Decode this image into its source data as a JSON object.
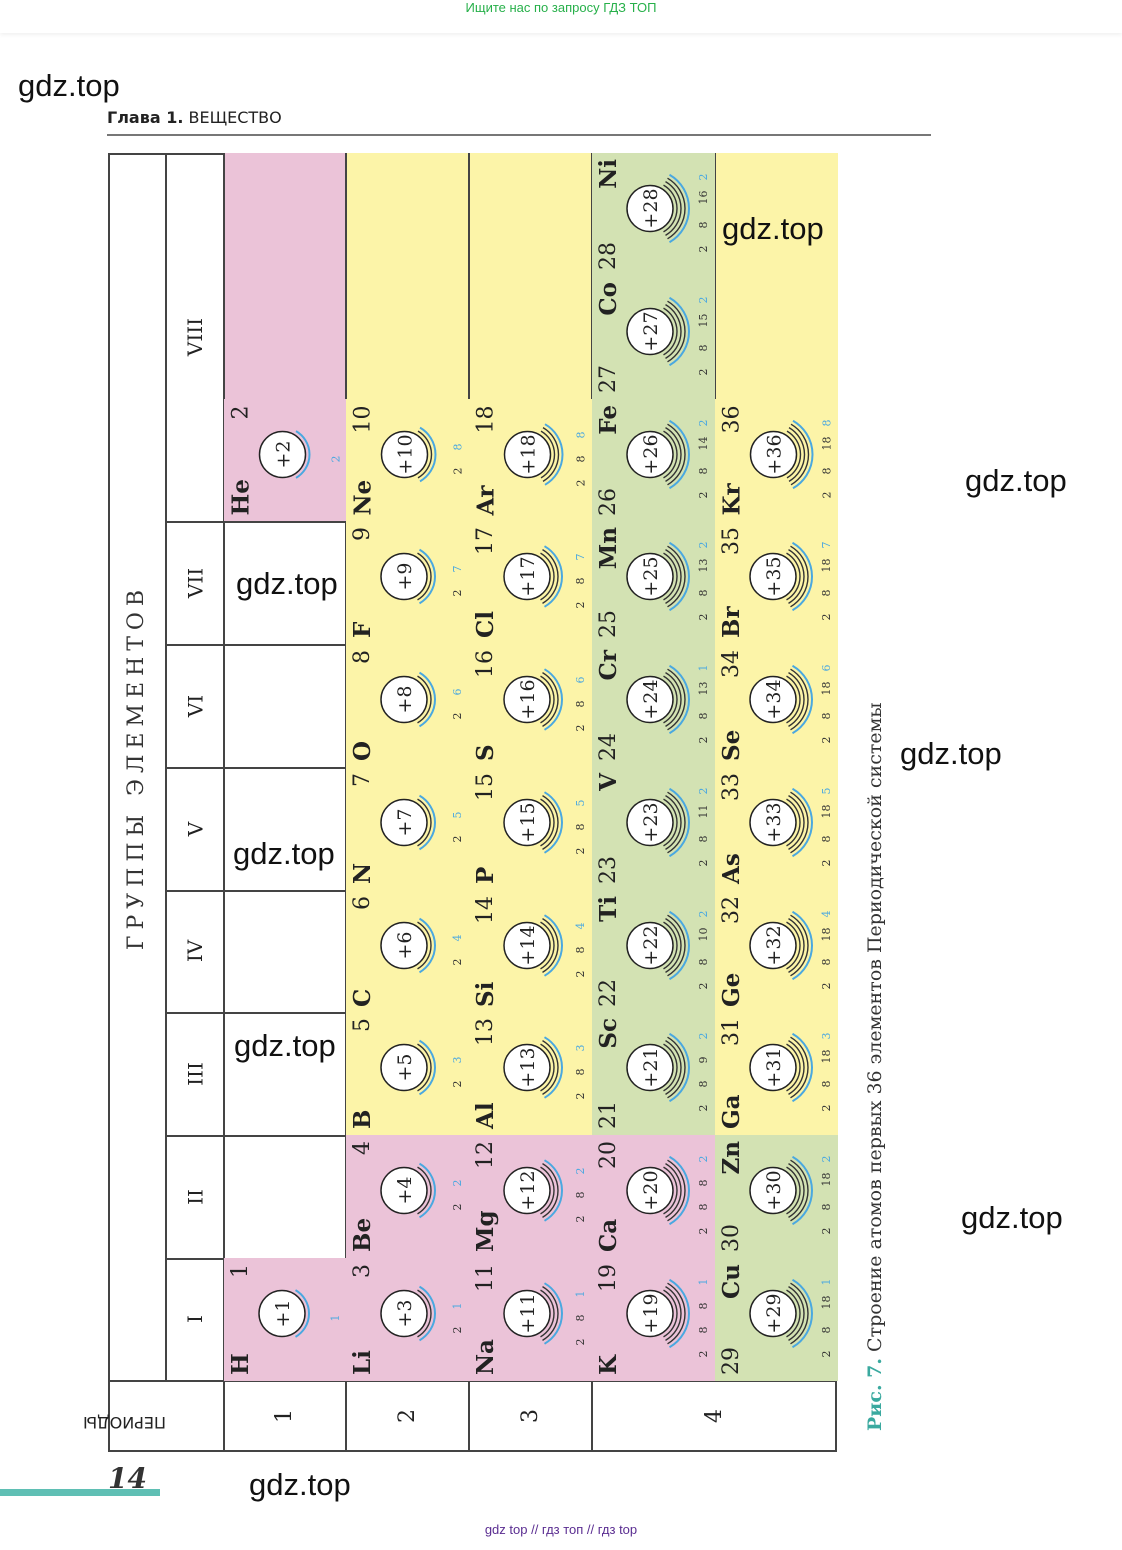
{
  "banner": "Ищите нас по запросу ГДЗ ТОП",
  "watermark": "gdz.top",
  "header": {
    "chapter": "Глава 1.",
    "title": "ВЕЩЕСТВО"
  },
  "table": {
    "groups_label": "ГРУППЫ ЭЛЕМЕНТОВ",
    "periods_label": "ПЕРИОДЫ",
    "groups": [
      "I",
      "II",
      "III",
      "IV",
      "V",
      "VI",
      "VII",
      "VIII"
    ],
    "periods": [
      "1",
      "2",
      "3",
      "4"
    ]
  },
  "colors": {
    "pink": "#ebc3d8",
    "yellow": "#fcf4a8",
    "green": "#d3e2b3",
    "shell": "#333333",
    "outer_shell": "#4aa8e0",
    "accent": "#3aa99f"
  },
  "elements": [
    {
      "symbol": "H",
      "z": 1,
      "shells": [
        1
      ],
      "group": "I",
      "row": "1",
      "color": "pink"
    },
    {
      "symbol": "He",
      "z": 2,
      "shells": [
        2
      ],
      "group": "VIII",
      "row": "1",
      "color": "pink"
    },
    {
      "symbol": "Li",
      "z": 3,
      "shells": [
        2,
        1
      ],
      "group": "I",
      "row": "2",
      "color": "pink"
    },
    {
      "symbol": "Be",
      "z": 4,
      "shells": [
        2,
        2
      ],
      "group": "II",
      "row": "2",
      "color": "pink"
    },
    {
      "symbol": "B",
      "z": 5,
      "shells": [
        2,
        3
      ],
      "group": "III",
      "row": "2",
      "color": "yellow"
    },
    {
      "symbol": "C",
      "z": 6,
      "shells": [
        2,
        4
      ],
      "group": "IV",
      "row": "2",
      "color": "yellow"
    },
    {
      "symbol": "N",
      "z": 7,
      "shells": [
        2,
        5
      ],
      "group": "V",
      "row": "2",
      "color": "yellow"
    },
    {
      "symbol": "O",
      "z": 8,
      "shells": [
        2,
        6
      ],
      "group": "VI",
      "row": "2",
      "color": "yellow"
    },
    {
      "symbol": "F",
      "z": 9,
      "shells": [
        2,
        7
      ],
      "group": "VII",
      "row": "2",
      "color": "yellow"
    },
    {
      "symbol": "Ne",
      "z": 10,
      "shells": [
        2,
        8
      ],
      "group": "VIII",
      "row": "2",
      "color": "yellow"
    },
    {
      "symbol": "Na",
      "z": 11,
      "shells": [
        2,
        8,
        1
      ],
      "group": "I",
      "row": "3",
      "color": "pink"
    },
    {
      "symbol": "Mg",
      "z": 12,
      "shells": [
        2,
        8,
        2
      ],
      "group": "II",
      "row": "3",
      "color": "pink"
    },
    {
      "symbol": "Al",
      "z": 13,
      "shells": [
        2,
        8,
        3
      ],
      "group": "III",
      "row": "3",
      "color": "yellow"
    },
    {
      "symbol": "Si",
      "z": 14,
      "shells": [
        2,
        8,
        4
      ],
      "group": "IV",
      "row": "3",
      "color": "yellow"
    },
    {
      "symbol": "P",
      "z": 15,
      "shells": [
        2,
        8,
        5
      ],
      "group": "V",
      "row": "3",
      "color": "yellow"
    },
    {
      "symbol": "S",
      "z": 16,
      "shells": [
        2,
        8,
        6
      ],
      "group": "VI",
      "row": "3",
      "color": "yellow"
    },
    {
      "symbol": "Cl",
      "z": 17,
      "shells": [
        2,
        8,
        7
      ],
      "group": "VII",
      "row": "3",
      "color": "yellow"
    },
    {
      "symbol": "Ar",
      "z": 18,
      "shells": [
        2,
        8,
        8
      ],
      "group": "VIII",
      "row": "3",
      "color": "yellow"
    },
    {
      "symbol": "K",
      "z": 19,
      "shells": [
        2,
        8,
        8,
        1
      ],
      "group": "I",
      "row": "4a",
      "color": "pink"
    },
    {
      "symbol": "Ca",
      "z": 20,
      "shells": [
        2,
        8,
        8,
        2
      ],
      "group": "II",
      "row": "4a",
      "color": "pink"
    },
    {
      "symbol": "Sc",
      "z": 21,
      "shells": [
        2,
        8,
        9,
        2
      ],
      "group": "III",
      "row": "4a",
      "color": "green",
      "d": true
    },
    {
      "symbol": "Ti",
      "z": 22,
      "shells": [
        2,
        8,
        10,
        2
      ],
      "group": "IV",
      "row": "4a",
      "color": "green",
      "d": true
    },
    {
      "symbol": "V",
      "z": 23,
      "shells": [
        2,
        8,
        11,
        2
      ],
      "group": "V",
      "row": "4a",
      "color": "green",
      "d": true
    },
    {
      "symbol": "Cr",
      "z": 24,
      "shells": [
        2,
        8,
        13,
        1
      ],
      "group": "VI",
      "row": "4a",
      "color": "green",
      "d": true
    },
    {
      "symbol": "Mn",
      "z": 25,
      "shells": [
        2,
        8,
        13,
        2
      ],
      "group": "VII",
      "row": "4a",
      "color": "green",
      "d": true
    },
    {
      "symbol": "Fe",
      "z": 26,
      "shells": [
        2,
        8,
        14,
        2
      ],
      "group": "VIII",
      "triad": 0,
      "row": "4a",
      "color": "green",
      "d": true
    },
    {
      "symbol": "Co",
      "z": 27,
      "shells": [
        2,
        8,
        15,
        2
      ],
      "group": "VIII",
      "triad": 1,
      "row": "4a",
      "color": "green",
      "d": true
    },
    {
      "symbol": "Ni",
      "z": 28,
      "shells": [
        2,
        8,
        16,
        2
      ],
      "group": "VIII",
      "triad": 2,
      "row": "4a",
      "color": "green",
      "d": true
    },
    {
      "symbol": "Cu",
      "z": 29,
      "shells": [
        2,
        8,
        18,
        1
      ],
      "group": "I",
      "row": "4b",
      "color": "green",
      "d": true
    },
    {
      "symbol": "Zn",
      "z": 30,
      "shells": [
        2,
        8,
        18,
        2
      ],
      "group": "II",
      "row": "4b",
      "color": "green",
      "d": true
    },
    {
      "symbol": "Ga",
      "z": 31,
      "shells": [
        2,
        8,
        18,
        3
      ],
      "group": "III",
      "row": "4b",
      "color": "yellow"
    },
    {
      "symbol": "Ge",
      "z": 32,
      "shells": [
        2,
        8,
        18,
        4
      ],
      "group": "IV",
      "row": "4b",
      "color": "yellow"
    },
    {
      "symbol": "As",
      "z": 33,
      "shells": [
        2,
        8,
        18,
        5
      ],
      "group": "V",
      "row": "4b",
      "color": "yellow"
    },
    {
      "symbol": "Se",
      "z": 34,
      "shells": [
        2,
        8,
        18,
        6
      ],
      "group": "VI",
      "row": "4b",
      "color": "yellow"
    },
    {
      "symbol": "Br",
      "z": 35,
      "shells": [
        2,
        8,
        18,
        7
      ],
      "group": "VII",
      "row": "4b",
      "color": "yellow"
    },
    {
      "symbol": "Kr",
      "z": 36,
      "shells": [
        2,
        8,
        18,
        8
      ],
      "group": "VIII",
      "row": "4b",
      "color": "yellow"
    }
  ],
  "caption": {
    "figure": "Рис. 7.",
    "text": "Строение атомов первых 36 элементов Периодической системы"
  },
  "page_number": "14",
  "footer": "gdz top  //  гдз топ  //  гдз top"
}
